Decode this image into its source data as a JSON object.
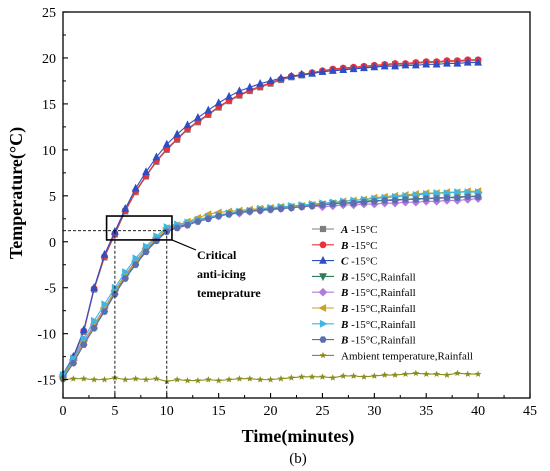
{
  "chart_data": {
    "type": "line",
    "xlabel": "Time(minutes)",
    "ylabel": "Temperature(°C)",
    "caption": "(b)",
    "xlim": [
      0,
      45
    ],
    "ylim": [
      -17,
      25
    ],
    "xticks": [
      0,
      5,
      10,
      15,
      20,
      25,
      30,
      35,
      40,
      45
    ],
    "yticks": [
      -15,
      -10,
      -5,
      0,
      5,
      10,
      15,
      20,
      25
    ],
    "annotation": {
      "lines": [
        "Critical",
        "anti-icing",
        "temeprature"
      ],
      "threshold_y": 1.2,
      "x_markers": [
        5,
        10
      ]
    },
    "legend_placement": "lower-right",
    "series": [
      {
        "name_prefix": "A",
        "name_suffix": " -15°C",
        "color": "#7f7f7f",
        "marker": "square",
        "line": "solid",
        "x": [
          0,
          1,
          2,
          3,
          4,
          5,
          6,
          7,
          8,
          9,
          10,
          11,
          12,
          13,
          14,
          15,
          16,
          17,
          18,
          19,
          20,
          21,
          22,
          23,
          24,
          25,
          26,
          27,
          28,
          29,
          30,
          31,
          32,
          33,
          34,
          35,
          36,
          37,
          38,
          39,
          40
        ],
        "y": [
          -14.6,
          -12.7,
          -9.8,
          -5.2,
          -1.7,
          0.8,
          3.3,
          5.4,
          7.1,
          8.7,
          10,
          11.1,
          12.2,
          13,
          13.8,
          14.6,
          15.3,
          15.9,
          16.4,
          16.8,
          17.2,
          17.6,
          17.9,
          18.1,
          18.3,
          18.5,
          18.7,
          18.8,
          18.9,
          19,
          19.1,
          19.2,
          19.3,
          19.3,
          19.4,
          19.5,
          19.5,
          19.6,
          19.6,
          19.7,
          19.7
        ]
      },
      {
        "name_prefix": "B",
        "name_suffix": " -15°C",
        "color": "#e8333a",
        "marker": "circle",
        "line": "solid",
        "x": [
          0,
          1,
          2,
          3,
          4,
          5,
          6,
          7,
          8,
          9,
          10,
          11,
          12,
          13,
          14,
          15,
          16,
          17,
          18,
          19,
          20,
          21,
          22,
          23,
          24,
          25,
          26,
          27,
          28,
          29,
          30,
          31,
          32,
          33,
          34,
          35,
          36,
          37,
          38,
          39,
          40
        ],
        "y": [
          -14.5,
          -12.6,
          -9.7,
          -5.1,
          -1.6,
          0.9,
          3.4,
          5.5,
          7.2,
          8.8,
          10.1,
          11.2,
          12.3,
          13.1,
          13.9,
          14.7,
          15.4,
          16,
          16.5,
          16.9,
          17.3,
          17.7,
          18,
          18.2,
          18.4,
          18.6,
          18.8,
          18.9,
          19,
          19.1,
          19.2,
          19.3,
          19.4,
          19.4,
          19.5,
          19.6,
          19.6,
          19.7,
          19.7,
          19.8,
          19.8
        ]
      },
      {
        "name_prefix": "C",
        "name_suffix": " -15°C",
        "color": "#2f4ec4",
        "marker": "triangle-up",
        "line": "solid",
        "x": [
          0,
          1,
          2,
          3,
          4,
          5,
          6,
          7,
          8,
          9,
          10,
          11,
          12,
          13,
          14,
          15,
          16,
          17,
          18,
          19,
          20,
          21,
          22,
          23,
          24,
          25,
          26,
          27,
          28,
          29,
          30,
          31,
          32,
          33,
          34,
          35,
          36,
          37,
          38,
          39,
          40
        ],
        "y": [
          -14.4,
          -12.5,
          -9.6,
          -5,
          -1.4,
          1.1,
          3.6,
          5.8,
          7.6,
          9.2,
          10.6,
          11.7,
          12.7,
          13.5,
          14.3,
          15.1,
          15.8,
          16.4,
          16.8,
          17.2,
          17.5,
          17.8,
          18,
          18.2,
          18.3,
          18.5,
          18.6,
          18.7,
          18.8,
          18.9,
          19,
          19.1,
          19.1,
          19.2,
          19.2,
          19.3,
          19.3,
          19.4,
          19.4,
          19.5,
          19.5
        ]
      },
      {
        "name_prefix": "B",
        "name_suffix": " -15°C,Rainfall",
        "color": "#2e7d5b",
        "marker": "triangle-down",
        "line": "solid",
        "x": [
          0,
          1,
          2,
          3,
          4,
          5,
          6,
          7,
          8,
          9,
          10,
          11,
          12,
          13,
          14,
          15,
          16,
          17,
          18,
          19,
          20,
          21,
          22,
          23,
          24,
          25,
          26,
          27,
          28,
          29,
          30,
          31,
          32,
          33,
          34,
          35,
          36,
          37,
          38,
          39,
          40
        ],
        "y": [
          -14.8,
          -13.1,
          -11,
          -9.3,
          -7.5,
          -5.6,
          -3.9,
          -2.4,
          -1,
          0.2,
          1.2,
          1.6,
          1.9,
          2.3,
          2.6,
          2.9,
          3.1,
          3.2,
          3.3,
          3.5,
          3.6,
          3.7,
          3.8,
          3.9,
          4,
          4.1,
          4.2,
          4.2,
          4.3,
          4.4,
          4.5,
          4.5,
          4.6,
          4.6,
          4.7,
          4.7,
          4.8,
          4.8,
          4.9,
          4.9,
          5
        ]
      },
      {
        "name_prefix": "B",
        "name_suffix": " -15°C,Rainfall",
        "color": "#b17bd8",
        "marker": "diamond",
        "line": "solid",
        "x": [
          0,
          1,
          2,
          3,
          4,
          5,
          6,
          7,
          8,
          9,
          10,
          11,
          12,
          13,
          14,
          15,
          16,
          17,
          18,
          19,
          20,
          21,
          22,
          23,
          24,
          25,
          26,
          27,
          28,
          29,
          30,
          31,
          32,
          33,
          34,
          35,
          36,
          37,
          38,
          39,
          40
        ],
        "y": [
          -14.7,
          -12.9,
          -10.8,
          -9,
          -7.2,
          -5.3,
          -3.6,
          -2.1,
          -0.7,
          0.4,
          1.4,
          1.7,
          2,
          2.3,
          2.6,
          2.8,
          3,
          3.1,
          3.3,
          3.4,
          3.5,
          3.6,
          3.7,
          3.8,
          3.9,
          3.8,
          3.9,
          4,
          4,
          4.1,
          4.1,
          4.2,
          4.2,
          4.3,
          4.3,
          4.4,
          4.4,
          4.5,
          4.5,
          4.6,
          4.7
        ]
      },
      {
        "name_prefix": "B",
        "name_suffix": " -15°C,Rainfall",
        "color": "#c9a227",
        "marker": "triangle-left",
        "line": "solid",
        "x": [
          0,
          1,
          2,
          3,
          4,
          5,
          6,
          7,
          8,
          9,
          10,
          11,
          12,
          13,
          14,
          15,
          16,
          17,
          18,
          19,
          20,
          21,
          22,
          23,
          24,
          25,
          26,
          27,
          28,
          29,
          30,
          31,
          32,
          33,
          34,
          35,
          36,
          37,
          38,
          39,
          40
        ],
        "y": [
          -14.7,
          -13,
          -11,
          -9.2,
          -7.3,
          -5.4,
          -3.7,
          -2.2,
          -0.8,
          0.3,
          1.5,
          1.8,
          2.2,
          2.6,
          3,
          3.2,
          3.3,
          3.4,
          3.5,
          3.6,
          3.7,
          3.8,
          3.8,
          3.9,
          4,
          4.1,
          4.2,
          4.4,
          4.5,
          4.6,
          4.8,
          4.9,
          5,
          5.1,
          5.2,
          5.3,
          5.3,
          5.4,
          5.4,
          5.5,
          5.5
        ]
      },
      {
        "name_prefix": "B",
        "name_suffix": " -15°C,Rainfall",
        "color": "#3fb7e0",
        "marker": "triangle-right",
        "line": "solid",
        "x": [
          0,
          1,
          2,
          3,
          4,
          5,
          6,
          7,
          8,
          9,
          10,
          11,
          12,
          13,
          14,
          15,
          16,
          17,
          18,
          19,
          20,
          21,
          22,
          23,
          24,
          25,
          26,
          27,
          28,
          29,
          30,
          31,
          32,
          33,
          34,
          35,
          36,
          37,
          38,
          39,
          40
        ],
        "y": [
          -14.5,
          -12.7,
          -10.5,
          -8.6,
          -6.8,
          -5,
          -3.3,
          -1.8,
          -0.5,
          0.6,
          1.6,
          1.9,
          2.1,
          2.4,
          2.7,
          2.9,
          3.1,
          3.3,
          3.4,
          3.6,
          3.7,
          3.8,
          3.9,
          4,
          4.1,
          4.2,
          4.3,
          4.4,
          4.5,
          4.6,
          4.7,
          4.8,
          4.9,
          5,
          5.1,
          5.2,
          5.3,
          5.3,
          5.4,
          5.4,
          5.4
        ]
      },
      {
        "name_prefix": "B",
        "name_suffix": " -15°C,Rainfall",
        "color": "#5b6fb0",
        "marker": "hexagon",
        "line": "solid",
        "x": [
          0,
          1,
          2,
          3,
          4,
          5,
          6,
          7,
          8,
          9,
          10,
          11,
          12,
          13,
          14,
          15,
          16,
          17,
          18,
          19,
          20,
          21,
          22,
          23,
          24,
          25,
          26,
          27,
          28,
          29,
          30,
          31,
          32,
          33,
          34,
          35,
          36,
          37,
          38,
          39,
          40
        ],
        "y": [
          -14.9,
          -13.2,
          -11.2,
          -9.4,
          -7.6,
          -5.7,
          -4,
          -2.5,
          -1.1,
          0.1,
          1.1,
          1.5,
          1.8,
          2.2,
          2.5,
          2.8,
          3,
          3.2,
          3.3,
          3.4,
          3.5,
          3.6,
          3.7,
          3.8,
          3.9,
          4,
          4.1,
          4.2,
          4.2,
          4.3,
          4.4,
          4.5,
          4.5,
          4.6,
          4.6,
          4.7,
          4.7,
          4.8,
          4.8,
          4.9,
          4.9
        ]
      },
      {
        "name_prefix": "",
        "name_suffix": "Ambient temperature,Rainfall",
        "color": "#8c8c1e",
        "marker": "star",
        "line": "solid",
        "x": [
          0,
          1,
          2,
          3,
          4,
          5,
          6,
          7,
          8,
          9,
          10,
          11,
          12,
          13,
          14,
          15,
          16,
          17,
          18,
          19,
          20,
          21,
          22,
          23,
          24,
          25,
          26,
          27,
          28,
          29,
          30,
          31,
          32,
          33,
          34,
          35,
          36,
          37,
          38,
          39,
          40
        ],
        "y": [
          -15,
          -14.9,
          -14.9,
          -15,
          -15,
          -14.8,
          -15,
          -14.9,
          -15,
          -14.9,
          -15.2,
          -15,
          -15.1,
          -15.1,
          -15,
          -15.1,
          -15,
          -14.9,
          -14.9,
          -15,
          -15,
          -14.9,
          -14.8,
          -14.7,
          -14.7,
          -14.7,
          -14.8,
          -14.6,
          -14.6,
          -14.7,
          -14.6,
          -14.5,
          -14.5,
          -14.4,
          -14.3,
          -14.4,
          -14.4,
          -14.5,
          -14.3,
          -14.4,
          -14.4
        ]
      }
    ]
  }
}
